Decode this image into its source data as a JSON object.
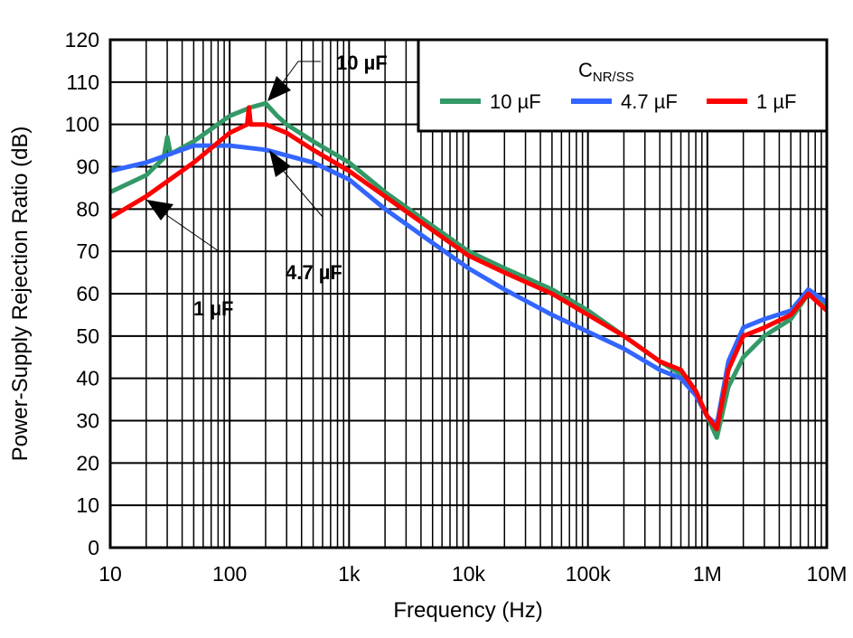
{
  "chart_data": {
    "type": "line",
    "title": "",
    "xlabel": "Frequency (Hz)",
    "ylabel": "Power-Supply Rejection Ratio (dB)",
    "xscale": "log",
    "xlim": [
      10,
      10000000
    ],
    "ylim": [
      0,
      120
    ],
    "xticks": [
      10,
      100,
      1000,
      10000,
      100000,
      1000000,
      10000000
    ],
    "xtick_labels": [
      "10",
      "100",
      "1k",
      "10k",
      "100k",
      "1M",
      "10M"
    ],
    "yticks": [
      0,
      10,
      20,
      30,
      40,
      50,
      60,
      70,
      80,
      90,
      100,
      110,
      120
    ],
    "ytick_labels": [
      "0",
      "10",
      "20",
      "30",
      "40",
      "50",
      "60",
      "70",
      "80",
      "90",
      "100",
      "110",
      "120"
    ],
    "grid": true,
    "legend": {
      "title_main": "C",
      "title_sub": "NR/SS",
      "placement": "top-right"
    },
    "series": [
      {
        "name": "10 µF",
        "color": "#339966",
        "x": [
          10,
          20,
          28,
          30,
          32,
          50,
          100,
          150,
          200,
          250,
          300,
          500,
          1000,
          2000,
          5000,
          10000,
          20000,
          50000,
          100000,
          200000,
          400000,
          600000,
          800000,
          1000000,
          1200000,
          1500000,
          2000000,
          3000000,
          5000000,
          7000000,
          10000000
        ],
        "y": [
          84,
          88,
          92,
          97,
          93,
          96,
          102,
          104,
          105,
          102,
          100,
          96,
          91,
          84,
          76,
          70,
          66,
          61,
          56,
          50,
          44,
          41,
          37,
          31,
          26,
          38,
          45,
          50,
          54,
          60,
          57
        ]
      },
      {
        "name": "4.7 µF",
        "color": "#3366FF",
        "x": [
          10,
          20,
          50,
          100,
          200,
          500,
          1000,
          2000,
          5000,
          10000,
          20000,
          50000,
          100000,
          200000,
          400000,
          600000,
          800000,
          1000000,
          1200000,
          1500000,
          2000000,
          3000000,
          5000000,
          7000000,
          10000000
        ],
        "y": [
          89,
          91,
          95,
          95,
          94,
          91,
          87,
          80,
          72,
          66,
          61,
          55,
          51,
          47,
          42,
          40,
          36,
          31,
          29,
          44,
          52,
          54,
          56,
          61,
          58
        ]
      },
      {
        "name": "1 µF",
        "color": "#FF0000",
        "x": [
          10,
          20,
          50,
          100,
          140,
          145,
          150,
          200,
          300,
          500,
          1000,
          2000,
          5000,
          10000,
          20000,
          50000,
          100000,
          200000,
          400000,
          600000,
          800000,
          1000000,
          1200000,
          1500000,
          2000000,
          3000000,
          5000000,
          7000000,
          10000000
        ],
        "y": [
          78,
          83,
          91,
          98,
          100,
          104,
          100,
          100,
          98,
          94,
          89,
          83,
          75,
          69,
          65,
          60,
          55,
          50,
          44,
          42,
          37,
          31,
          28,
          42,
          50,
          52,
          55,
          60,
          56
        ]
      }
    ],
    "annotations": [
      {
        "text": "10 µF"
      },
      {
        "text": "4.7 µF"
      },
      {
        "text": "1 µF"
      }
    ]
  }
}
